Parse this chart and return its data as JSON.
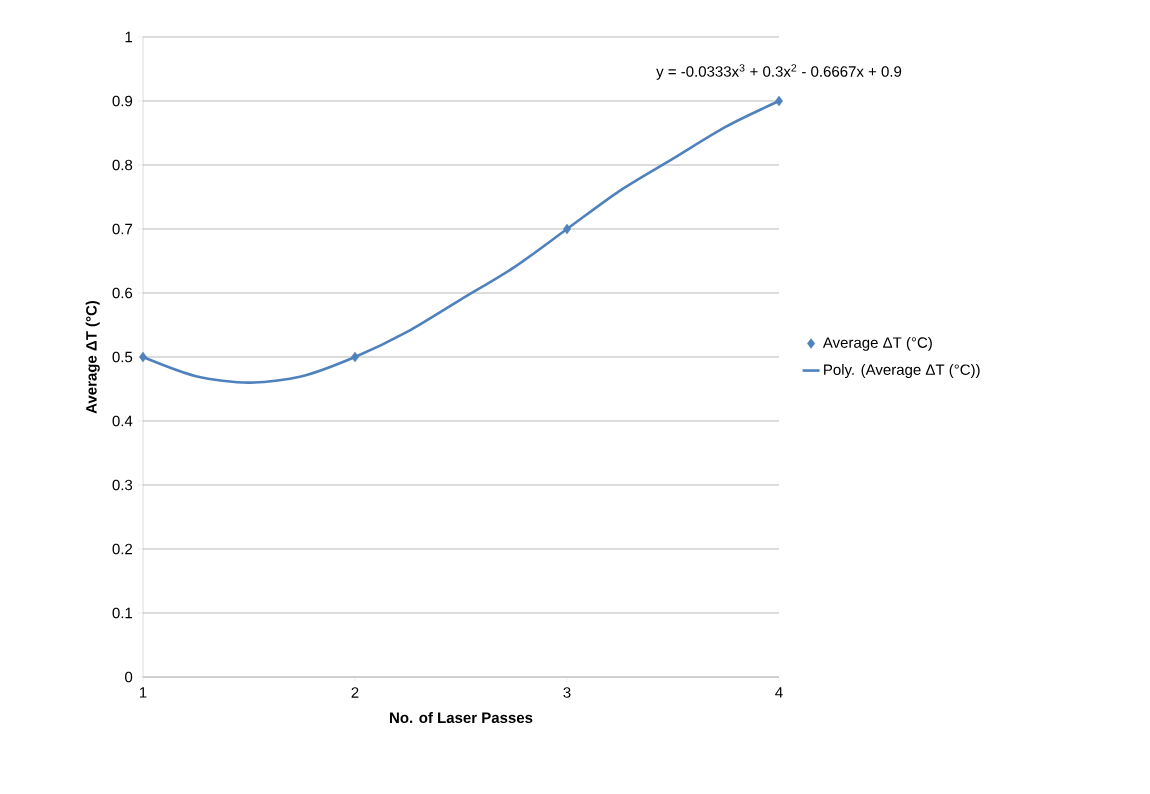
{
  "chart_data": {
    "type": "scatter",
    "xlabel": "No. of Laser Passes",
    "ylabel": "Average ΔT (°C)",
    "xlim": [
      1,
      4
    ],
    "xticks": [
      1,
      2,
      3,
      4
    ],
    "ylim": [
      0,
      1
    ],
    "yticks": [
      0,
      0.1,
      0.2,
      0.3,
      0.4,
      0.5,
      0.6,
      0.7,
      0.8,
      0.9,
      1
    ],
    "grid": "y",
    "legend": "right",
    "annotations": [
      "y = -0.0333x$^{3}$ + 0.3x$^{2}$ - 0.6667x + 0.9"
    ],
    "series": [
      {
        "name": "Average ΔT (°C)",
        "marker": "diamond",
        "color": "#4f81bd",
        "x": [
          1,
          2,
          3,
          4
        ],
        "values": [
          0.5,
          0.5,
          0.7,
          0.9
        ]
      },
      {
        "name": "Poly. (Average ΔT (°C))",
        "type": "line",
        "marker": "none",
        "line_style": "solid",
        "color": "#4f81bd",
        "x": [
          1,
          1.25,
          1.5,
          1.75,
          2,
          2.25,
          2.5,
          2.75,
          3,
          3.25,
          3.5,
          3.75,
          4
        ],
        "values": [
          0.5,
          0.47,
          0.46,
          0.47,
          0.5,
          0.54,
          0.59,
          0.64,
          0.7,
          0.76,
          0.81,
          0.86,
          0.9
        ]
      }
    ]
  }
}
